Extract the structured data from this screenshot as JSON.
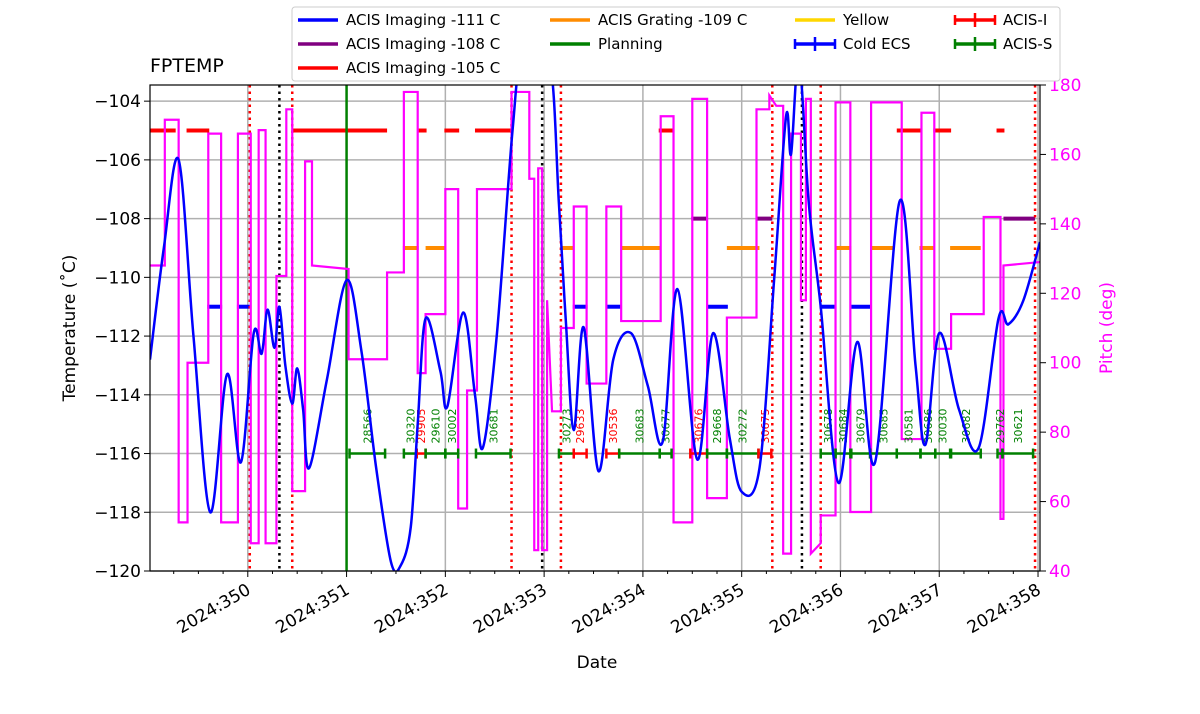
{
  "chart_data": {
    "type": "line",
    "title": "FPTEMP",
    "xlabel": "Date",
    "ylabel": "Temperature ($^\\circ$C)",
    "ylabel_display": "Temperature (˚C)",
    "y2label": "Pitch (deg)",
    "xlim": [
      349.01,
      358.02
    ],
    "ylim": [
      -120,
      -103.45
    ],
    "y2lim": [
      40,
      180
    ],
    "grid": true,
    "legend_placement": "top, outside plot",
    "xticks": [
      {
        "v": 350,
        "label": "2024:350"
      },
      {
        "v": 351,
        "label": "2024:351"
      },
      {
        "v": 352,
        "label": "2024:352"
      },
      {
        "v": 353,
        "label": "2024:353"
      },
      {
        "v": 354,
        "label": "2024:354"
      },
      {
        "v": 355,
        "label": "2024:355"
      },
      {
        "v": 356,
        "label": "2024:356"
      },
      {
        "v": 357,
        "label": "2024:357"
      },
      {
        "v": 358,
        "label": "2024:358"
      }
    ],
    "yticks": [
      -120,
      -118,
      -116,
      -114,
      -112,
      -110,
      -108,
      -106,
      -104
    ],
    "y2ticks": [
      40,
      60,
      80,
      100,
      120,
      140,
      160,
      180
    ],
    "colors": {
      "temp": "#0000ff",
      "pitch": "#ff00ff",
      "imaging111": "#0000ff",
      "imaging108": "#800080",
      "imaging105": "#ff0000",
      "grating109": "#ff8c00",
      "planning": "#008000",
      "yellow": "#ffd700",
      "acis_i": "#ff0000",
      "acis_s": "#008000",
      "grid": "#b0b0b0"
    },
    "legend": [
      {
        "label": "ACIS Imaging -111 C",
        "color": "#0000ff",
        "style": "line"
      },
      {
        "label": "ACIS Imaging -108 C",
        "color": "#800080",
        "style": "line"
      },
      {
        "label": "ACIS Imaging -105 C",
        "color": "#ff0000",
        "style": "line"
      },
      {
        "label": "ACIS Grating -109 C",
        "color": "#ff8c00",
        "style": "line"
      },
      {
        "label": "Planning",
        "color": "#008000",
        "style": "line"
      },
      {
        "label": "Yellow",
        "color": "#ffd700",
        "style": "line"
      },
      {
        "label": "Cold ECS",
        "color": "#0000ff",
        "style": "errorbar"
      },
      {
        "label": "ACIS-I",
        "color": "#ff0000",
        "style": "errorbar"
      },
      {
        "label": "ACIS-S",
        "color": "#008000",
        "style": "errorbar"
      }
    ],
    "temperature": [
      [
        349.01,
        -112.8
      ],
      [
        349.15,
        -109
      ],
      [
        349.3,
        -106
      ],
      [
        349.45,
        -112
      ],
      [
        349.62,
        -118
      ],
      [
        349.79,
        -113.3
      ],
      [
        349.93,
        -116.3
      ],
      [
        350.06,
        -111.9
      ],
      [
        350.14,
        -112.6
      ],
      [
        350.2,
        -111.1
      ],
      [
        350.27,
        -112.4
      ],
      [
        350.32,
        -111
      ],
      [
        350.38,
        -113
      ],
      [
        350.45,
        -114.3
      ],
      [
        350.5,
        -113.1
      ],
      [
        350.56,
        -114.5
      ],
      [
        350.62,
        -116.5
      ],
      [
        350.8,
        -113.5
      ],
      [
        351.0,
        -110.1
      ],
      [
        351.15,
        -112.5
      ],
      [
        351.3,
        -116.5
      ],
      [
        351.45,
        -119.7
      ],
      [
        351.55,
        -119.8
      ],
      [
        351.65,
        -118.5
      ],
      [
        351.72,
        -115
      ],
      [
        351.8,
        -111.4
      ],
      [
        351.95,
        -113.2
      ],
      [
        352.02,
        -114.4
      ],
      [
        352.18,
        -111.2
      ],
      [
        352.3,
        -114
      ],
      [
        352.38,
        -115.8
      ],
      [
        352.52,
        -112
      ],
      [
        352.68,
        -105
      ],
      [
        352.78,
        -102.5
      ],
      [
        353.05,
        -102.5
      ],
      [
        353.15,
        -107.5
      ],
      [
        353.22,
        -111.5
      ],
      [
        353.3,
        -115.2
      ],
      [
        353.4,
        -111.7
      ],
      [
        353.55,
        -116.6
      ],
      [
        353.7,
        -112.8
      ],
      [
        353.88,
        -111.9
      ],
      [
        354.05,
        -113.7
      ],
      [
        354.2,
        -115.6
      ],
      [
        354.35,
        -110.4
      ],
      [
        354.55,
        -116.2
      ],
      [
        354.71,
        -111.9
      ],
      [
        354.88,
        -115.5
      ],
      [
        355.0,
        -117.3
      ],
      [
        355.18,
        -116.5
      ],
      [
        355.33,
        -110
      ],
      [
        355.45,
        -104.5
      ],
      [
        355.5,
        -105.8
      ],
      [
        355.58,
        -102.5
      ],
      [
        355.68,
        -107.5
      ],
      [
        355.8,
        -111
      ],
      [
        355.98,
        -117
      ],
      [
        356.17,
        -112.2
      ],
      [
        356.35,
        -116.3
      ],
      [
        356.6,
        -107.4
      ],
      [
        356.76,
        -113
      ],
      [
        356.86,
        -115.7
      ],
      [
        357.0,
        -111.9
      ],
      [
        357.2,
        -114.5
      ],
      [
        357.4,
        -115.8
      ],
      [
        357.6,
        -111.4
      ],
      [
        357.7,
        -111.6
      ],
      [
        357.85,
        -110.8
      ],
      [
        358.02,
        -108.8
      ]
    ],
    "pitch": [
      [
        349.01,
        128
      ],
      [
        349.16,
        128
      ],
      [
        349.16,
        170
      ],
      [
        349.3,
        170
      ],
      [
        349.3,
        54
      ],
      [
        349.39,
        54
      ],
      [
        349.39,
        100
      ],
      [
        349.6,
        100
      ],
      [
        349.6,
        166
      ],
      [
        349.73,
        166
      ],
      [
        349.73,
        54
      ],
      [
        349.9,
        54
      ],
      [
        349.9,
        166
      ],
      [
        350.03,
        166
      ],
      [
        350.03,
        48
      ],
      [
        350.11,
        48
      ],
      [
        350.11,
        167
      ],
      [
        350.18,
        167
      ],
      [
        350.18,
        48
      ],
      [
        350.29,
        48
      ],
      [
        350.29,
        125
      ],
      [
        350.39,
        125
      ],
      [
        350.39,
        173
      ],
      [
        350.45,
        173
      ],
      [
        350.45,
        63
      ],
      [
        350.58,
        63
      ],
      [
        350.58,
        158
      ],
      [
        350.65,
        158
      ],
      [
        350.65,
        128
      ],
      [
        351.02,
        127
      ],
      [
        351.02,
        101
      ],
      [
        351.41,
        101
      ],
      [
        351.41,
        126
      ],
      [
        351.58,
        126
      ],
      [
        351.58,
        178
      ],
      [
        351.72,
        178
      ],
      [
        351.72,
        97
      ],
      [
        351.8,
        97
      ],
      [
        351.8,
        114
      ],
      [
        352.0,
        114
      ],
      [
        352.0,
        150
      ],
      [
        352.13,
        150
      ],
      [
        352.13,
        58
      ],
      [
        352.22,
        58
      ],
      [
        352.22,
        92
      ],
      [
        352.32,
        92
      ],
      [
        352.32,
        150
      ],
      [
        352.67,
        150
      ],
      [
        352.67,
        178
      ],
      [
        352.85,
        178
      ],
      [
        352.85,
        153
      ],
      [
        352.9,
        153
      ],
      [
        352.9,
        46
      ],
      [
        352.94,
        46
      ],
      [
        352.94,
        156
      ],
      [
        352.98,
        156
      ],
      [
        352.98,
        46
      ],
      [
        353.03,
        46
      ],
      [
        353.03,
        118
      ],
      [
        353.08,
        86
      ],
      [
        353.17,
        86
      ],
      [
        353.17,
        110
      ],
      [
        353.3,
        110
      ],
      [
        353.3,
        145
      ],
      [
        353.43,
        145
      ],
      [
        353.43,
        94
      ],
      [
        353.63,
        94
      ],
      [
        353.63,
        145
      ],
      [
        353.78,
        145
      ],
      [
        353.78,
        112
      ],
      [
        354.18,
        112
      ],
      [
        354.18,
        171
      ],
      [
        354.31,
        171
      ],
      [
        354.31,
        54
      ],
      [
        354.5,
        54
      ],
      [
        354.5,
        176
      ],
      [
        354.65,
        176
      ],
      [
        354.65,
        61
      ],
      [
        354.85,
        61
      ],
      [
        354.85,
        113
      ],
      [
        355.15,
        113
      ],
      [
        355.15,
        173
      ],
      [
        355.28,
        173
      ],
      [
        355.28,
        177
      ],
      [
        355.35,
        174
      ],
      [
        355.42,
        174
      ],
      [
        355.42,
        45
      ],
      [
        355.5,
        45
      ],
      [
        355.5,
        166
      ],
      [
        355.6,
        166
      ],
      [
        355.6,
        118
      ],
      [
        355.65,
        118
      ],
      [
        355.65,
        176
      ],
      [
        355.7,
        176
      ],
      [
        355.7,
        45
      ],
      [
        355.8,
        48
      ],
      [
        355.8,
        56
      ],
      [
        355.95,
        56
      ],
      [
        355.95,
        175
      ],
      [
        356.1,
        175
      ],
      [
        356.1,
        57
      ],
      [
        356.31,
        57
      ],
      [
        356.31,
        175
      ],
      [
        356.62,
        175
      ],
      [
        356.62,
        78
      ],
      [
        356.82,
        78
      ],
      [
        356.82,
        172
      ],
      [
        356.95,
        172
      ],
      [
        356.95,
        104
      ],
      [
        357.12,
        104
      ],
      [
        357.12,
        114
      ],
      [
        357.45,
        114
      ],
      [
        357.45,
        142
      ],
      [
        357.62,
        142
      ],
      [
        357.62,
        55
      ],
      [
        357.65,
        55
      ],
      [
        357.65,
        128
      ],
      [
        358.02,
        129
      ]
    ],
    "imaging_105": [
      [
        349.01,
        349.27
      ],
      [
        349.38,
        349.61
      ],
      [
        350.45,
        351.41
      ],
      [
        351.72,
        351.81
      ],
      [
        351.99,
        352.14
      ],
      [
        352.3,
        352.67
      ],
      [
        354.16,
        354.31
      ],
      [
        356.57,
        356.82
      ],
      [
        356.94,
        357.12
      ],
      [
        357.58,
        357.66
      ]
    ],
    "imaging_111": [
      [
        349.59,
        349.74
      ],
      [
        349.89,
        350.02
      ],
      [
        353.29,
        353.44
      ],
      [
        353.63,
        353.78
      ],
      [
        354.65,
        354.86
      ],
      [
        355.8,
        355.95
      ],
      [
        356.11,
        356.3
      ]
    ],
    "imaging_108": [
      [
        354.49,
        354.65
      ],
      [
        355.16,
        355.31
      ],
      [
        357.65,
        357.97
      ]
    ],
    "grating_109": [
      [
        351.57,
        351.73
      ],
      [
        351.8,
        352.01
      ],
      [
        353.17,
        353.3
      ],
      [
        353.78,
        354.18
      ],
      [
        354.85,
        355.18
      ],
      [
        355.95,
        356.11
      ],
      [
        356.31,
        356.54
      ],
      [
        356.8,
        356.95
      ],
      [
        357.11,
        357.42
      ]
    ],
    "planning": [
      351.0
    ],
    "acis_i_lines": [
      350.02,
      350.45,
      352.67,
      353.17,
      355.31,
      355.8,
      357.97
    ],
    "black_lines": [
      350.32,
      352.98,
      355.61
    ],
    "obsid_level": -116,
    "obsids": [
      {
        "id": "28566",
        "inst": "S",
        "start": 351.03,
        "end": 351.39
      },
      {
        "id": "30320",
        "inst": "S",
        "start": 351.58,
        "end": 351.71
      },
      {
        "id": "29905",
        "inst": "I",
        "start": 351.71,
        "end": 351.8
      },
      {
        "id": "29610",
        "inst": "S",
        "start": 351.8,
        "end": 352.0
      },
      {
        "id": "30002",
        "inst": "S",
        "start": 352.0,
        "end": 352.13
      },
      {
        "id": "30681",
        "inst": "S",
        "start": 352.31,
        "end": 352.66
      },
      {
        "id": "30273",
        "inst": "S",
        "start": 353.15,
        "end": 353.3
      },
      {
        "id": "29633",
        "inst": "I",
        "start": 353.3,
        "end": 353.43
      },
      {
        "id": "30536",
        "inst": "I",
        "start": 353.63,
        "end": 353.76
      },
      {
        "id": "30683",
        "inst": "S",
        "start": 353.76,
        "end": 354.17
      },
      {
        "id": "30677",
        "inst": "S",
        "start": 354.17,
        "end": 354.29
      },
      {
        "id": "30676",
        "inst": "I",
        "start": 354.48,
        "end": 354.65
      },
      {
        "id": "29668",
        "inst": "S",
        "start": 354.65,
        "end": 354.85
      },
      {
        "id": "30272",
        "inst": "S",
        "start": 354.85,
        "end": 355.17
      },
      {
        "id": "30675",
        "inst": "I",
        "start": 355.17,
        "end": 355.3
      },
      {
        "id": "30678",
        "inst": "S",
        "start": 355.8,
        "end": 355.95
      },
      {
        "id": "30684",
        "inst": "S",
        "start": 355.95,
        "end": 356.1
      },
      {
        "id": "30679",
        "inst": "S",
        "start": 356.11,
        "end": 356.3
      },
      {
        "id": "30685",
        "inst": "S",
        "start": 356.3,
        "end": 356.57
      },
      {
        "id": "30581",
        "inst": "S",
        "start": 356.57,
        "end": 356.81
      },
      {
        "id": "30686",
        "inst": "S",
        "start": 356.81,
        "end": 356.96
      },
      {
        "id": "30030",
        "inst": "S",
        "start": 356.96,
        "end": 357.11
      },
      {
        "id": "30682",
        "inst": "S",
        "start": 357.12,
        "end": 357.42
      },
      {
        "id": "29762",
        "inst": "S",
        "start": 357.59,
        "end": 357.64
      },
      {
        "id": "30621",
        "inst": "S",
        "start": 357.64,
        "end": 357.95
      }
    ]
  }
}
